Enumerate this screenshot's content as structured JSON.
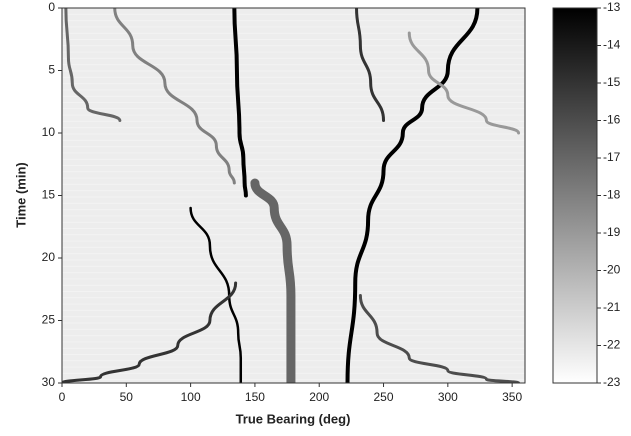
{
  "chart_data": {
    "type": "heatmap",
    "xlabel": "True Bearing (deg)",
    "ylabel": "Time (min)",
    "xlim": [
      0,
      360
    ],
    "xticks": [
      0,
      50,
      100,
      150,
      200,
      250,
      300,
      350
    ],
    "ylim": [
      30,
      0
    ],
    "yticks": [
      0,
      5,
      10,
      15,
      20,
      25,
      30
    ],
    "clim": [
      -23,
      -13
    ],
    "cticks": [
      -13,
      -14,
      -15,
      -16,
      -17,
      -18,
      -19,
      -20,
      -21,
      -22,
      -23
    ],
    "background_level": -22.3,
    "series": [
      {
        "x": [
          134,
          136,
          138,
          141,
          142,
          143
        ],
        "y": [
          0,
          5,
          10,
          12,
          14,
          15
        ],
        "level": -13
      },
      {
        "x": [
          100,
          115,
          130,
          137,
          139,
          139
        ],
        "y": [
          16,
          19,
          23,
          26,
          28,
          30
        ],
        "level": -13
      },
      {
        "x": [
          323,
          300,
          280,
          265,
          250,
          238,
          228,
          222
        ],
        "y": [
          0,
          5,
          8,
          10,
          13,
          17,
          22,
          30
        ],
        "level": -13
      },
      {
        "x": [
          229,
          232,
          240,
          250
        ],
        "y": [
          0,
          3,
          6,
          9
        ],
        "level": -15
      },
      {
        "x": [
          41,
          55,
          80,
          105,
          120,
          130,
          134
        ],
        "y": [
          0,
          3,
          6,
          9,
          11,
          13,
          14
        ],
        "level": -18
      },
      {
        "x": [
          150,
          165,
          175,
          178,
          178
        ],
        "y": [
          14,
          16,
          19,
          23,
          30
        ],
        "level": -17
      },
      {
        "x": [
          3,
          5,
          8,
          20,
          45
        ],
        "y": [
          0,
          4,
          6,
          8,
          9
        ],
        "level": -17
      },
      {
        "x": [
          0,
          30,
          60,
          90,
          115,
          135
        ],
        "y": [
          30,
          29.5,
          28.5,
          27,
          25,
          22
        ],
        "level": -15
      },
      {
        "x": [
          355,
          330,
          300,
          270,
          245,
          232
        ],
        "y": [
          30,
          29.7,
          29,
          28,
          26,
          23
        ],
        "level": -16
      },
      {
        "x": [
          270,
          285,
          300,
          330,
          355
        ],
        "y": [
          2,
          5,
          7,
          9,
          10
        ],
        "level": -19
      }
    ]
  }
}
